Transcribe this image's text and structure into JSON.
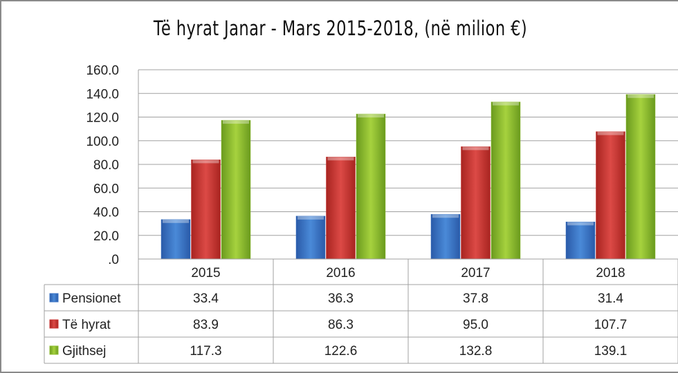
{
  "chart_data": {
    "type": "bar",
    "title": "Të hyrat Janar - Mars 2015-2018, (në milion €)",
    "categories": [
      "2015",
      "2016",
      "2017",
      "2018"
    ],
    "series": [
      {
        "name": "Pensionet",
        "values": [
          33.4,
          36.3,
          37.8,
          31.4
        ],
        "color": "#3a73c4"
      },
      {
        "name": "Të hyrat",
        "values": [
          83.9,
          86.3,
          95.0,
          107.7
        ],
        "color": "#c8312f"
      },
      {
        "name": "Gjithsej",
        "values": [
          117.3,
          122.6,
          132.8,
          139.1
        ],
        "color": "#8cbc2e"
      }
    ],
    "ylim": [
      0,
      160
    ],
    "yticks": [
      ".0",
      "20.0",
      "40.0",
      "60.0",
      "80.0",
      "100.0",
      "120.0",
      "140.0",
      "160.0"
    ],
    "grid": true,
    "legend": "data-table-below",
    "data_table": true
  }
}
